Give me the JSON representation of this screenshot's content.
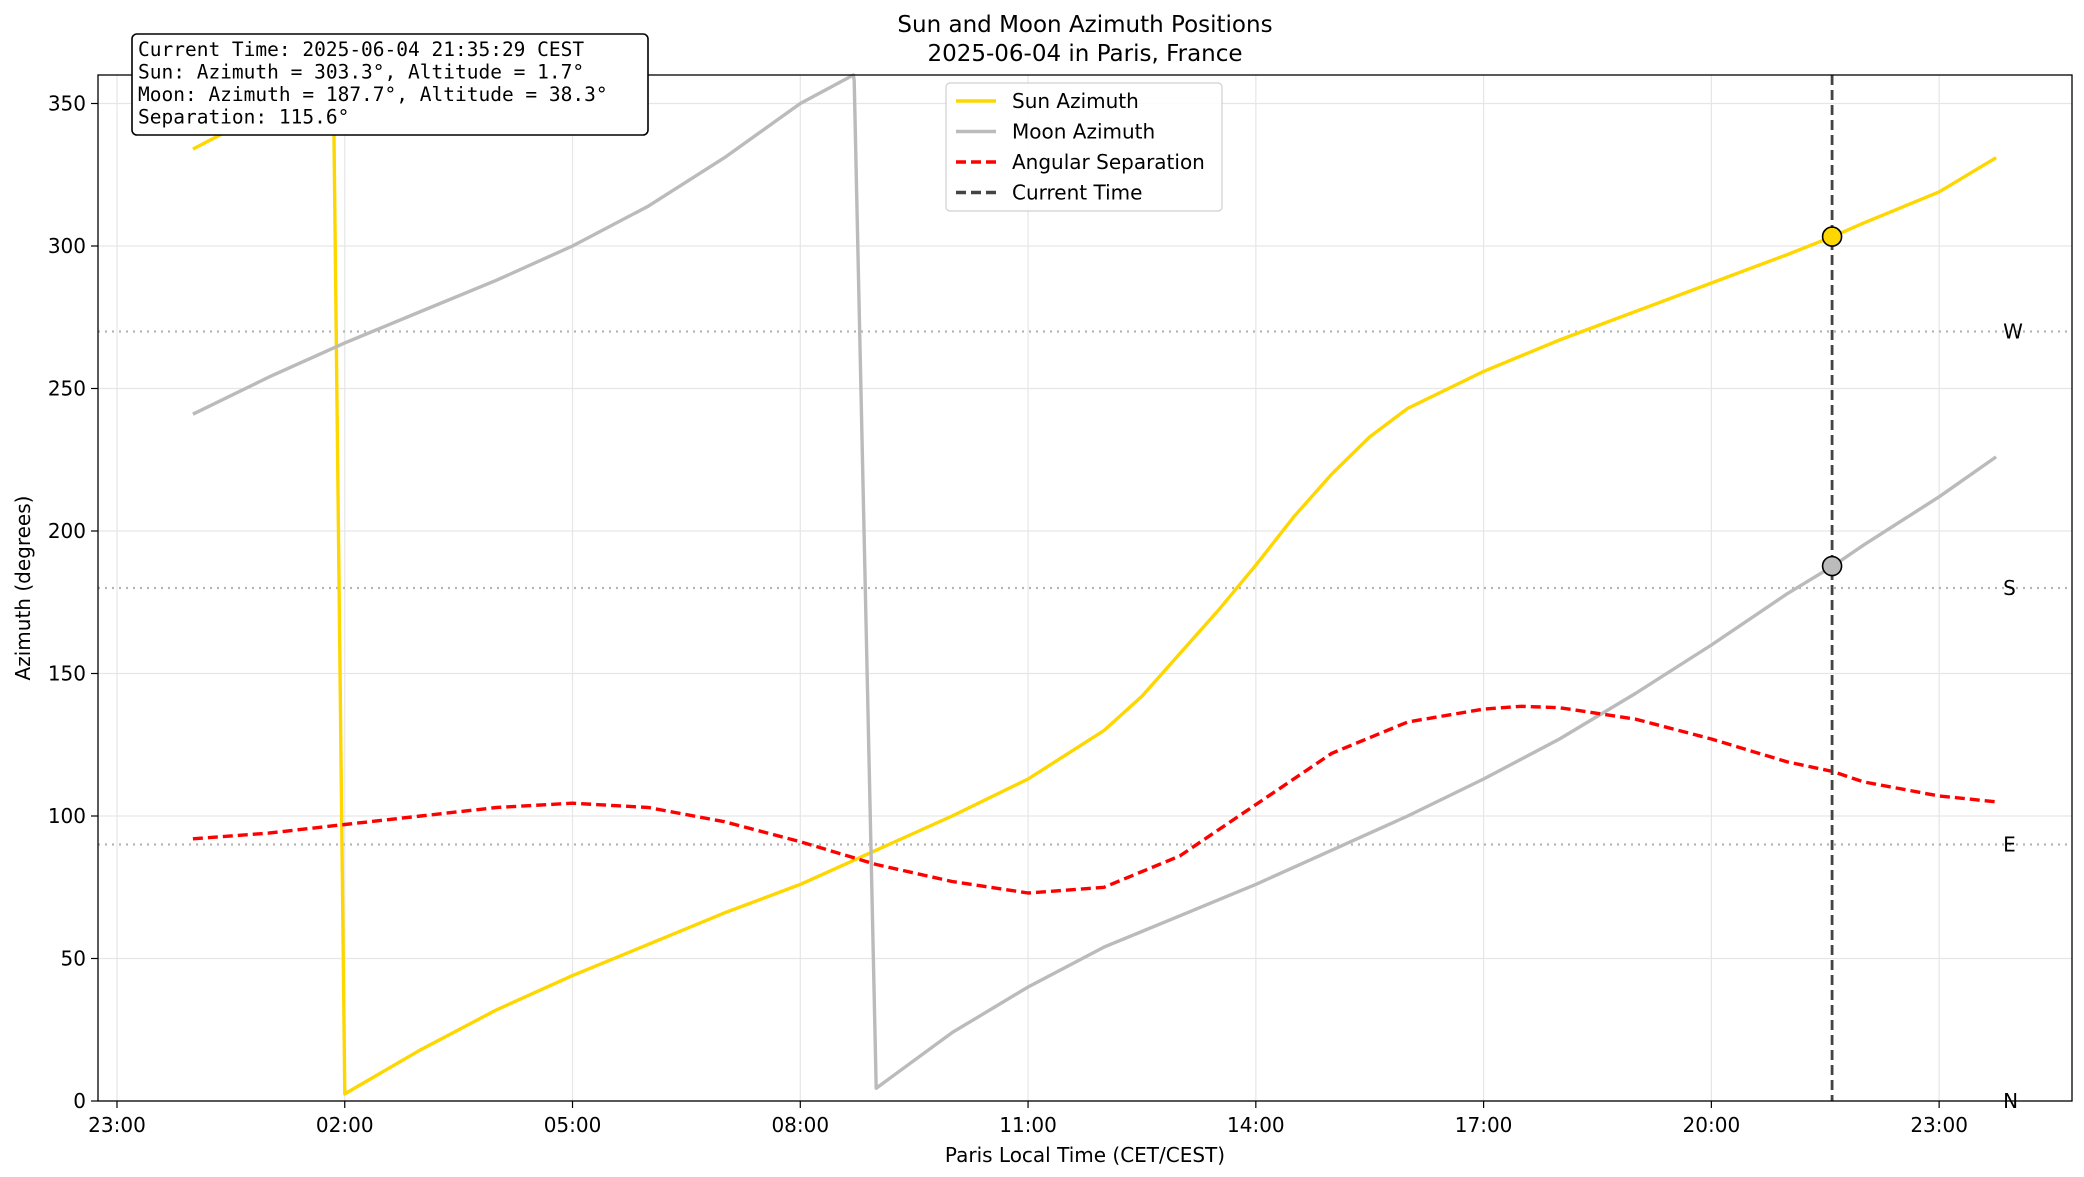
{
  "chart_data": {
    "type": "line",
    "title": "Sun and Moon Azimuth Positions",
    "subtitle": "2025-06-04 in Paris, France",
    "xlabel": "Paris Local Time (CET/CEST)",
    "ylabel": "Azimuth (degrees)",
    "xlim": [
      -1.25,
      24.75
    ],
    "ylim": [
      0,
      360
    ],
    "x_ticks": [
      "23:00",
      "02:00",
      "05:00",
      "08:00",
      "11:00",
      "14:00",
      "17:00",
      "20:00",
      "23:00"
    ],
    "x_tick_values": [
      -1,
      2,
      5,
      8,
      11,
      14,
      17,
      20,
      23
    ],
    "y_ticks": [
      0,
      50,
      100,
      150,
      200,
      250,
      300,
      350
    ],
    "grid": true,
    "legend_position": "top-center",
    "series": [
      {
        "name": "Sun Azimuth",
        "color": "#FFD700",
        "style": "solid",
        "points": [
          [
            0.0,
            334
          ],
          [
            0.5,
            341
          ],
          [
            1.0,
            347
          ],
          [
            1.5,
            353
          ],
          [
            1.75,
            357
          ],
          [
            1.8,
            358
          ],
          [
            1.85,
            357
          ],
          [
            2.0,
            2.5
          ],
          [
            3.0,
            18
          ],
          [
            4.0,
            32
          ],
          [
            5.0,
            44
          ],
          [
            6.0,
            55
          ],
          [
            7.0,
            66
          ],
          [
            8.0,
            76
          ],
          [
            9.0,
            88
          ],
          [
            10.0,
            100
          ],
          [
            11.0,
            113
          ],
          [
            12.0,
            130
          ],
          [
            12.5,
            142
          ],
          [
            13.0,
            157
          ],
          [
            13.5,
            172
          ],
          [
            14.0,
            188
          ],
          [
            14.5,
            205
          ],
          [
            15.0,
            220
          ],
          [
            15.5,
            233
          ],
          [
            16.0,
            243
          ],
          [
            17.0,
            256
          ],
          [
            18.0,
            267
          ],
          [
            19.0,
            277
          ],
          [
            20.0,
            287
          ],
          [
            21.0,
            297
          ],
          [
            21.6,
            303.3
          ],
          [
            22.0,
            308
          ],
          [
            23.0,
            319
          ],
          [
            23.75,
            331
          ]
        ]
      },
      {
        "name": "Moon Azimuth",
        "color": "#BBBBBB",
        "style": "solid",
        "points": [
          [
            0.0,
            241
          ],
          [
            1.0,
            254
          ],
          [
            2.0,
            266
          ],
          [
            3.0,
            277
          ],
          [
            4.0,
            288
          ],
          [
            5.0,
            300
          ],
          [
            6.0,
            314
          ],
          [
            7.0,
            331
          ],
          [
            8.0,
            350
          ],
          [
            8.7,
            360
          ],
          [
            8.71,
            358
          ],
          [
            9.0,
            4.5
          ],
          [
            10.0,
            24
          ],
          [
            11.0,
            40
          ],
          [
            12.0,
            54
          ],
          [
            13.0,
            65
          ],
          [
            14.0,
            76
          ],
          [
            15.0,
            88
          ],
          [
            16.0,
            100
          ],
          [
            17.0,
            113
          ],
          [
            18.0,
            127
          ],
          [
            19.0,
            143
          ],
          [
            20.0,
            160
          ],
          [
            21.0,
            178
          ],
          [
            21.6,
            187.7
          ],
          [
            22.0,
            195
          ],
          [
            23.0,
            212
          ],
          [
            23.75,
            226
          ]
        ]
      },
      {
        "name": "Angular Separation",
        "color": "#FF0000",
        "style": "dashed",
        "points": [
          [
            0.0,
            92
          ],
          [
            1.0,
            94
          ],
          [
            2.0,
            97
          ],
          [
            3.0,
            100
          ],
          [
            4.0,
            103
          ],
          [
            5.0,
            104.5
          ],
          [
            6.0,
            103
          ],
          [
            7.0,
            98
          ],
          [
            8.0,
            91
          ],
          [
            9.0,
            83
          ],
          [
            10.0,
            77
          ],
          [
            11.0,
            73
          ],
          [
            12.0,
            75
          ],
          [
            13.0,
            86
          ],
          [
            14.0,
            104
          ],
          [
            15.0,
            122
          ],
          [
            16.0,
            133
          ],
          [
            17.0,
            137.5
          ],
          [
            17.5,
            138.5
          ],
          [
            18.0,
            138
          ],
          [
            19.0,
            134
          ],
          [
            20.0,
            127
          ],
          [
            21.0,
            119
          ],
          [
            21.6,
            115.6
          ],
          [
            22.0,
            112
          ],
          [
            23.0,
            107
          ],
          [
            23.75,
            105
          ]
        ]
      },
      {
        "name": "Current Time",
        "color": "#444444",
        "style": "dashed",
        "x": 21.59
      }
    ],
    "markers": [
      {
        "series": "Sun Azimuth",
        "x": 21.59,
        "y": 303.3,
        "color": "#FFD700"
      },
      {
        "series": "Moon Azimuth",
        "x": 21.59,
        "y": 187.7,
        "color": "#BBBBBB"
      }
    ],
    "cardinal_lines": [
      {
        "label": "N",
        "y": 0
      },
      {
        "label": "E",
        "y": 90
      },
      {
        "label": "S",
        "y": 180
      },
      {
        "label": "W",
        "y": 270
      }
    ],
    "info_box": [
      "Current Time: 2025-06-04 21:35:29 CEST",
      "Sun: Azimuth = 303.3°, Altitude = 1.7°",
      "Moon: Azimuth = 187.7°, Altitude = 38.3°",
      "Separation: 115.6°"
    ]
  }
}
